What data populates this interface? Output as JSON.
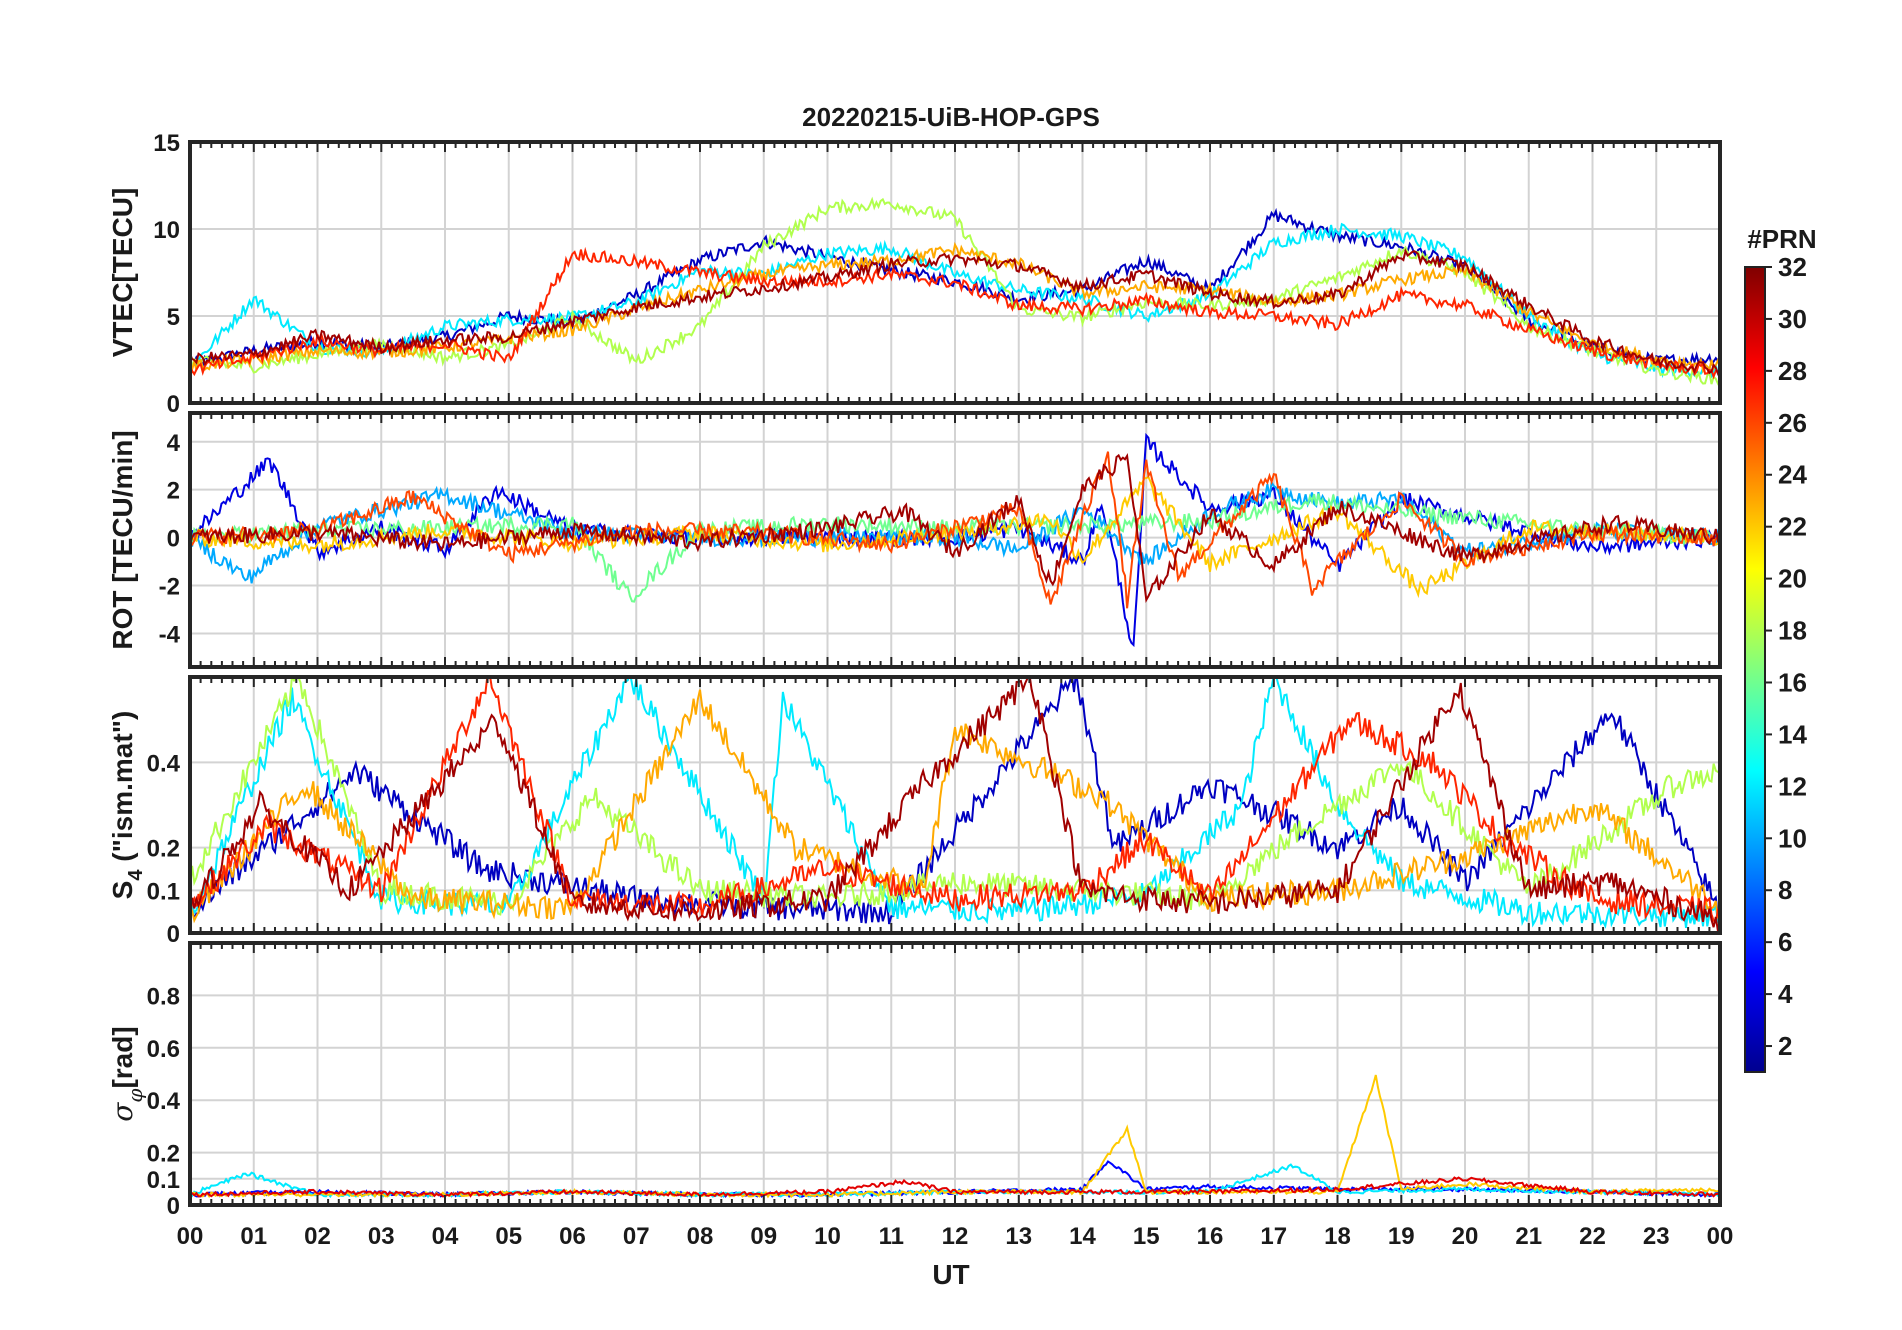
{
  "chart_data": {
    "type": "line",
    "title": "20220215-UiB-HOP-GPS",
    "xlabel": "UT",
    "x_ticks": [
      "00",
      "01",
      "02",
      "03",
      "04",
      "05",
      "06",
      "07",
      "08",
      "09",
      "10",
      "11",
      "12",
      "13",
      "14",
      "15",
      "16",
      "17",
      "18",
      "19",
      "20",
      "21",
      "22",
      "23",
      "00"
    ],
    "x_range": [
      0,
      24
    ],
    "grid": true,
    "colorbar": {
      "label": "#PRN",
      "range": [
        1,
        32
      ],
      "ticks": [
        "2",
        "4",
        "6",
        "8",
        "10",
        "12",
        "14",
        "16",
        "18",
        "20",
        "22",
        "24",
        "26",
        "28",
        "30",
        "32"
      ],
      "colormap": "jet"
    },
    "panels": [
      {
        "key": "vtec",
        "ylabel": "VTEC[TECU]",
        "ylim": [
          0,
          15
        ],
        "yticks": [
          "0",
          "5",
          "10",
          "15"
        ],
        "series": [
          {
            "prn": 3,
            "x": [
              0,
              1,
              2,
              3,
              4,
              5,
              6,
              7,
              8,
              9,
              10,
              11,
              12,
              13,
              14,
              15,
              16,
              17,
              18,
              19,
              20,
              21,
              22,
              23,
              24
            ],
            "y": [
              2.2,
              3.0,
              3.5,
              3.2,
              3.8,
              5.0,
              4.6,
              6.2,
              8.2,
              9.3,
              8.4,
              7.6,
              7.0,
              6.0,
              6.5,
              8.2,
              6.5,
              10.8,
              9.6,
              9.0,
              7.8,
              4.8,
              3.2,
              2.4,
              2.6
            ]
          },
          {
            "prn": 12,
            "x": [
              0,
              1,
              2,
              3,
              4,
              5,
              6,
              7,
              8,
              9,
              10,
              11,
              12,
              13,
              14,
              15,
              16,
              17,
              18,
              19,
              20,
              21,
              22,
              23,
              24
            ],
            "y": [
              2.0,
              6.0,
              3.2,
              2.9,
              4.4,
              4.8,
              4.9,
              5.8,
              7.6,
              7.4,
              8.6,
              8.9,
              7.4,
              6.5,
              6.0,
              5.0,
              6.2,
              9.2,
              10.0,
              9.6,
              8.4,
              5.0,
              2.8,
              2.0,
              1.8
            ]
          },
          {
            "prn": 18,
            "x": [
              0,
              1,
              2,
              3,
              4,
              5,
              6,
              7,
              8,
              9,
              10,
              11,
              12,
              13,
              14,
              15,
              16,
              17,
              18,
              19,
              20,
              21,
              22,
              23,
              24
            ],
            "y": [
              2.4,
              2.1,
              2.8,
              3.4,
              2.6,
              3.3,
              4.9,
              2.4,
              4.4,
              9.0,
              11.2,
              11.5,
              10.6,
              5.4,
              4.9,
              5.8,
              5.6,
              6.0,
              7.2,
              8.8,
              7.5,
              4.4,
              3.0,
              1.9,
              1.3
            ]
          },
          {
            "prn": 23,
            "x": [
              0,
              1,
              2,
              3,
              4,
              5,
              6,
              7,
              8,
              9,
              10,
              11,
              12,
              13,
              14,
              15,
              16,
              17,
              18,
              19,
              20,
              21,
              22,
              23,
              24
            ],
            "y": [
              2.1,
              2.5,
              3.0,
              2.9,
              3.2,
              3.7,
              4.2,
              5.4,
              6.5,
              7.4,
              7.9,
              8.2,
              8.8,
              8.0,
              6.3,
              6.7,
              6.5,
              5.8,
              6.2,
              7.1,
              7.6,
              5.2,
              3.4,
              2.5,
              2.1
            ]
          },
          {
            "prn": 27,
            "x": [
              0,
              1,
              2,
              3,
              4,
              5,
              6,
              7,
              8,
              9,
              10,
              11,
              12,
              13,
              14,
              15,
              16,
              17,
              18,
              19,
              20,
              21,
              22,
              23,
              24
            ],
            "y": [
              1.9,
              2.6,
              3.6,
              3.0,
              3.4,
              2.5,
              8.6,
              8.1,
              7.5,
              7.0,
              7.0,
              7.4,
              6.9,
              5.6,
              5.4,
              5.9,
              5.2,
              5.0,
              4.5,
              6.2,
              5.6,
              4.2,
              3.0,
              2.2,
              1.8
            ]
          },
          {
            "prn": 31,
            "x": [
              0,
              1,
              2,
              3,
              4,
              5,
              6,
              7,
              8,
              9,
              10,
              11,
              12,
              13,
              14,
              15,
              16,
              17,
              18,
              19,
              20,
              21,
              22,
              23,
              24
            ],
            "y": [
              2.5,
              2.8,
              3.9,
              3.2,
              3.6,
              3.8,
              4.7,
              5.5,
              6.1,
              6.6,
              7.2,
              8.0,
              8.3,
              7.9,
              6.7,
              7.4,
              6.3,
              5.8,
              6.2,
              8.5,
              7.9,
              5.6,
              3.6,
              2.4,
              2.0
            ]
          }
        ]
      },
      {
        "key": "rot",
        "ylabel": "ROT [TECU/min]",
        "ylim": [
          -5.4,
          5.2
        ],
        "yticks": [
          "-4",
          "-2",
          "0",
          "2",
          "4"
        ],
        "series": [
          {
            "prn": 4,
            "x": [
              0,
              1.25,
              2,
              3,
              4,
              4.8,
              6,
              8,
              10,
              12,
              13,
              14,
              14.3,
              14.5,
              14.8,
              15,
              16,
              17,
              18,
              19,
              20,
              22,
              24
            ],
            "y": [
              0,
              3.2,
              -0.6,
              0.4,
              -0.5,
              2.0,
              0.3,
              0,
              0,
              0,
              0.4,
              -1.0,
              1.5,
              -0.8,
              -4.8,
              4.0,
              1.2,
              1.8,
              -1.2,
              1.6,
              0.9,
              -0.4,
              0
            ]
          },
          {
            "prn": 10,
            "x": [
              0,
              0.9,
              2,
              4,
              6,
              8,
              10,
              12,
              13,
              14,
              15,
              16,
              17,
              18,
              19,
              20,
              22,
              24
            ],
            "y": [
              0,
              -1.7,
              0.5,
              1.8,
              0.2,
              0,
              0,
              0,
              -0.5,
              1.2,
              -1.0,
              1.0,
              2.0,
              1.4,
              1.6,
              -0.6,
              0.3,
              0
            ]
          },
          {
            "prn": 16,
            "x": [
              0,
              2,
              4,
              6,
              6.9,
              8,
              10,
              12,
              14,
              16,
              17.6,
              19,
              22,
              24
            ],
            "y": [
              0,
              0.3,
              0.4,
              0.6,
              -2.5,
              0.3,
              0.6,
              0.4,
              0.5,
              0.7,
              1.6,
              1.1,
              0.3,
              0
            ]
          },
          {
            "prn": 22,
            "x": [
              0,
              2,
              4,
              6,
              8,
              10,
              12,
              13.5,
              14,
              15,
              16,
              18,
              19.3,
              21,
              24
            ],
            "y": [
              0,
              -0.3,
              0.3,
              -0.2,
              0.2,
              -0.3,
              0.2,
              0.8,
              -0.9,
              2.4,
              -1.1,
              1.1,
              -2.2,
              0.4,
              0
            ]
          },
          {
            "prn": 26,
            "x": [
              0,
              2,
              3.5,
              5,
              7,
              9,
              11,
              13,
              13.5,
              14.4,
              14.7,
              15,
              15.5,
              17,
              17.6,
              19,
              20,
              22,
              24
            ],
            "y": [
              0,
              0.3,
              1.7,
              -0.7,
              0.3,
              0.2,
              -0.3,
              1.2,
              -2.8,
              3.6,
              -2.6,
              3.0,
              -1.6,
              2.6,
              -2.1,
              1.6,
              -0.9,
              0.2,
              0
            ]
          },
          {
            "prn": 31,
            "x": [
              0,
              2,
              4,
              6,
              8,
              10,
              11.2,
              12,
              13,
              13.5,
              14,
              14.7,
              15,
              16,
              17,
              18,
              20,
              22.3,
              24
            ],
            "y": [
              0,
              0.2,
              -0.3,
              0.3,
              -0.2,
              0.4,
              1.1,
              -0.6,
              1.6,
              -2.0,
              2.0,
              3.4,
              -2.6,
              1.0,
              -1.2,
              1.3,
              -0.8,
              0.6,
              0
            ]
          }
        ]
      },
      {
        "key": "s4",
        "ylabel": "S4 (\"ism.mat\")",
        "ylabel_main": "S",
        "ylabel_sub": "4",
        "ylabel_rest": " (\"ism.mat\")",
        "ylim": [
          0,
          0.6
        ],
        "yticks": [
          "0",
          "0.1",
          "0.2",
          "0.4"
        ],
        "series": [
          {
            "prn": 3,
            "x": [
              0,
              2.6,
              4.6,
              7,
              9,
              11,
              13.9,
              14.5,
              16,
              17,
              18,
              19,
              20,
              22.3,
              24
            ],
            "y": [
              0.05,
              0.38,
              0.15,
              0.08,
              0.06,
              0.05,
              0.6,
              0.2,
              0.35,
              0.28,
              0.2,
              0.3,
              0.12,
              0.52,
              0.05
            ]
          },
          {
            "prn": 12,
            "x": [
              0,
              1.6,
              3,
              5,
              6.9,
              9,
              9.3,
              11,
              13,
              15,
              16.5,
              17,
              18,
              19,
              21,
              24
            ],
            "y": [
              0.04,
              0.55,
              0.08,
              0.06,
              0.6,
              0.08,
              0.55,
              0.06,
              0.05,
              0.09,
              0.3,
              0.6,
              0.3,
              0.12,
              0.05,
              0.04
            ]
          },
          {
            "prn": 18,
            "x": [
              0,
              1.7,
              3,
              5,
              6.3,
              8,
              10,
              12,
              14,
              16,
              17.5,
              19,
              21,
              23.3,
              24
            ],
            "y": [
              0.12,
              0.6,
              0.1,
              0.07,
              0.32,
              0.1,
              0.08,
              0.12,
              0.1,
              0.08,
              0.25,
              0.4,
              0.1,
              0.35,
              0.38
            ]
          },
          {
            "prn": 23,
            "x": [
              0,
              1.8,
              3.5,
              6,
              8,
              9.5,
              11.5,
              12,
              14.3,
              16,
              18,
              20,
              22,
              24
            ],
            "y": [
              0.04,
              0.35,
              0.08,
              0.06,
              0.55,
              0.2,
              0.1,
              0.48,
              0.32,
              0.08,
              0.1,
              0.18,
              0.3,
              0.06
            ]
          },
          {
            "prn": 27,
            "x": [
              0,
              1.2,
              3,
              4.7,
              6,
              8,
              10,
              12,
              14,
              15,
              16,
              18.2,
              19.5,
              20.6,
              22,
              24
            ],
            "y": [
              0.06,
              0.25,
              0.1,
              0.6,
              0.08,
              0.06,
              0.15,
              0.08,
              0.1,
              0.22,
              0.08,
              0.5,
              0.4,
              0.22,
              0.08,
              0.05
            ]
          },
          {
            "prn": 31,
            "x": [
              0,
              1.1,
              2.5,
              4.8,
              6,
              8,
              10,
              11.5,
              13.2,
              14,
              15,
              16,
              18,
              19.9,
              21,
              22.3,
              24
            ],
            "y": [
              0.05,
              0.3,
              0.1,
              0.5,
              0.07,
              0.05,
              0.08,
              0.35,
              0.6,
              0.1,
              0.08,
              0.07,
              0.1,
              0.58,
              0.1,
              0.12,
              0.03
            ]
          }
        ]
      },
      {
        "key": "sigma",
        "ylabel": "σφ[rad]",
        "ylabel_main": "σ",
        "ylabel_sub": "φ",
        "ylabel_rest": "[rad]",
        "ylim": [
          0,
          1.0
        ],
        "yticks": [
          "0",
          "0.1",
          "0.2",
          "0.4",
          "0.6",
          "0.8"
        ],
        "series": [
          {
            "prn": 5,
            "x": [
              0,
              2,
              4,
              6,
              8,
              10,
              12,
              14,
              14.4,
              15,
              16,
              18,
              20,
              22,
              24
            ],
            "y": [
              0.04,
              0.05,
              0.04,
              0.05,
              0.04,
              0.04,
              0.05,
              0.06,
              0.17,
              0.06,
              0.07,
              0.06,
              0.06,
              0.05,
              0.04
            ]
          },
          {
            "prn": 12,
            "x": [
              0,
              0.9,
              2,
              4,
              6,
              8,
              10,
              12,
              14,
              16,
              17.3,
              18,
              20,
              24
            ],
            "y": [
              0.04,
              0.12,
              0.04,
              0.04,
              0.05,
              0.04,
              0.04,
              0.05,
              0.05,
              0.05,
              0.15,
              0.05,
              0.06,
              0.04
            ]
          },
          {
            "prn": 22,
            "x": [
              0,
              2,
              4,
              6,
              8,
              10,
              12,
              14,
              14.7,
              15,
              16,
              18,
              18.6,
              19,
              20,
              22,
              24
            ],
            "y": [
              0.04,
              0.04,
              0.04,
              0.05,
              0.04,
              0.04,
              0.05,
              0.05,
              0.29,
              0.05,
              0.05,
              0.05,
              0.49,
              0.06,
              0.08,
              0.05,
              0.06
            ]
          },
          {
            "prn": 29,
            "x": [
              0,
              2,
              4,
              6,
              8,
              10,
              11.2,
              12,
              14,
              16,
              18,
              20,
              22,
              24
            ],
            "y": [
              0.04,
              0.05,
              0.04,
              0.05,
              0.04,
              0.05,
              0.09,
              0.05,
              0.05,
              0.05,
              0.06,
              0.1,
              0.05,
              0.04
            ]
          }
        ]
      }
    ]
  }
}
